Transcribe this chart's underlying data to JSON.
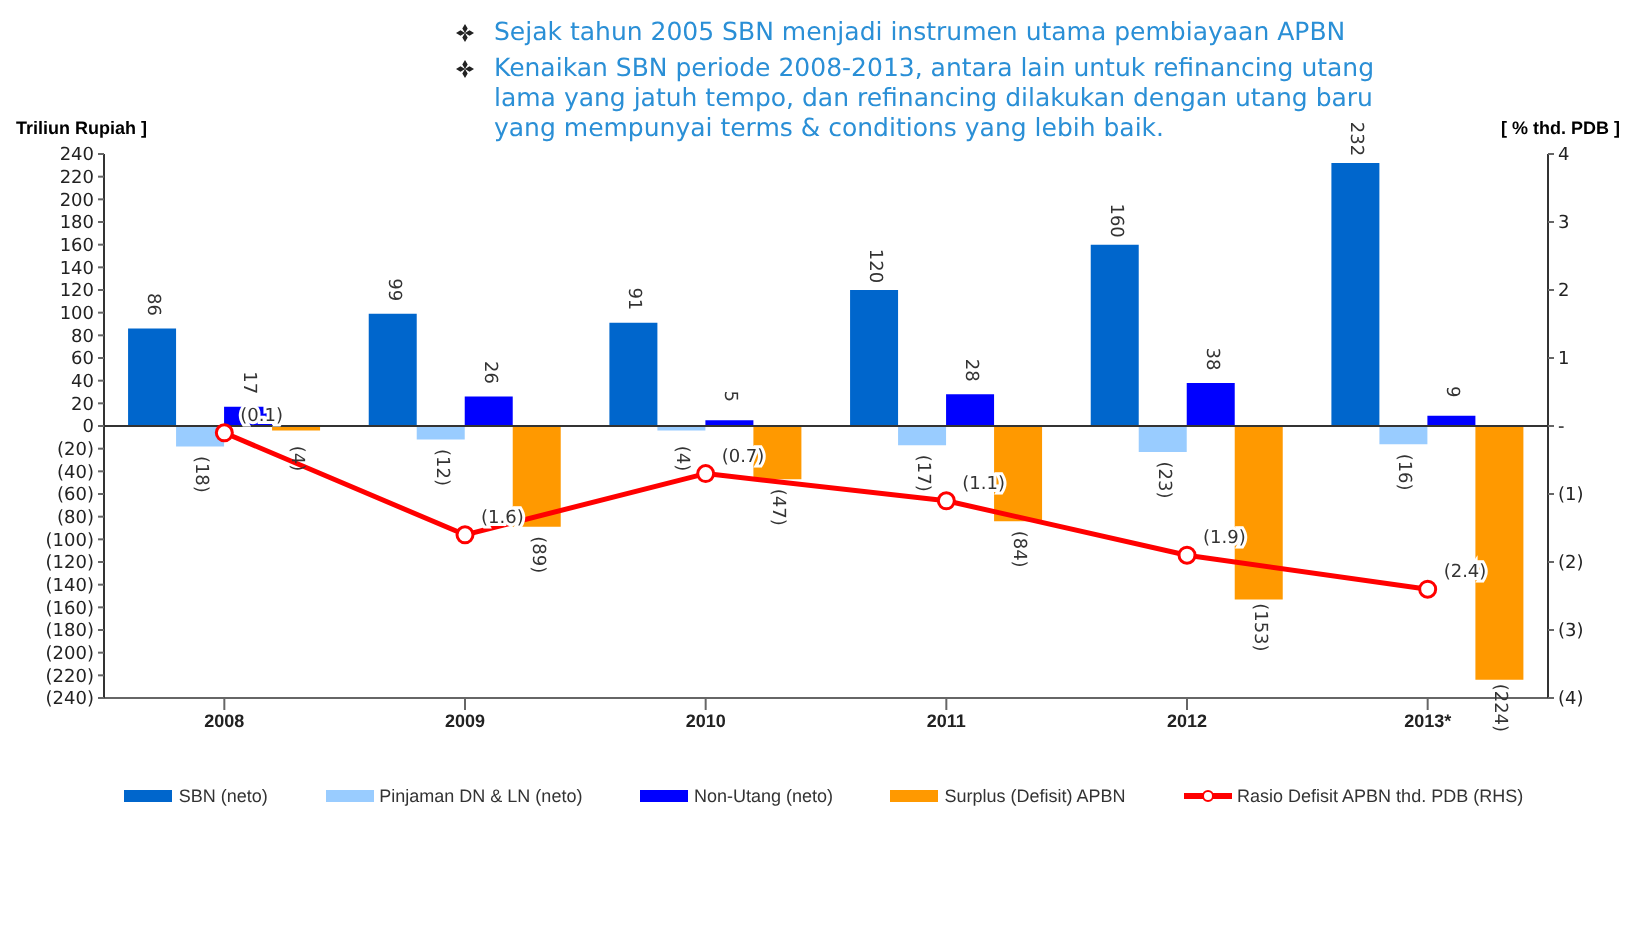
{
  "chart_data": {
    "type": "bar",
    "title": "Sejak tahun 2005 SBN menjadi instrumen utama pembiayaan APBN",
    "subtitle": "Kenaikan SBN periode 2008-2013, antara lain untuk refinancing utang lama yang jatuh tempo, dan refinancing dilakukan dengan utang baru yang mempunyai terms & conditions yang lebih baik.",
    "ylabel": "Triliun Rupiah ]",
    "y2label": "[ % thd. PDB ]",
    "categories": [
      "2008",
      "2009",
      "2010",
      "2011",
      "2012",
      "2013*"
    ],
    "series": [
      {
        "name": "SBN (neto)",
        "color": "#0066cc",
        "values": [
          86,
          99,
          91,
          120,
          160,
          232
        ],
        "value_labels": [
          "86",
          "99",
          "91",
          "120",
          "160",
          "232"
        ]
      },
      {
        "name": "Pinjaman DN & LN (neto)",
        "color": "#99ccff",
        "values": [
          -18,
          -12,
          -4,
          -17,
          -23,
          -16
        ],
        "value_labels": [
          "(18)",
          "(12)",
          "(4)",
          "(17)",
          "(23)",
          "(16)"
        ]
      },
      {
        "name": "Non-Utang (neto)",
        "color": "#0000ff",
        "values": [
          17,
          26,
          5,
          28,
          38,
          9
        ],
        "value_labels": [
          "17",
          "26",
          "5",
          "28",
          "38",
          "9"
        ]
      },
      {
        "name": "Surplus (Defisit) APBN",
        "color": "#ff9900",
        "values": [
          -4,
          -89,
          -47,
          -84,
          -153,
          -224
        ],
        "value_labels": [
          "(4)",
          "(89)",
          "(47)",
          "(84)",
          "(153)",
          "(224)"
        ]
      },
      {
        "name": "Rasio Defisit APBN thd. PDB (RHS)",
        "type": "line",
        "axis": "y2",
        "color": "#ff0000",
        "marker": "circle",
        "values": [
          -0.1,
          -1.6,
          -0.7,
          -1.1,
          -1.9,
          -2.4
        ],
        "value_labels": [
          "(0.1)",
          "(1.6)",
          "(0.7)",
          "(1.1)",
          "(1.9)",
          "(2.4)"
        ]
      }
    ],
    "ylim": [
      -240,
      240
    ],
    "yticks": [
      240,
      220,
      200,
      180,
      160,
      140,
      120,
      100,
      80,
      60,
      40,
      20,
      0,
      {
        "value": -20,
        "label": "(20)"
      },
      {
        "value": -40,
        "label": "(40)"
      },
      {
        "value": -60,
        "label": "(60)"
      },
      {
        "value": -80,
        "label": "(80)"
      },
      {
        "value": -100,
        "label": "(100)"
      },
      {
        "value": -120,
        "label": "(120)"
      },
      {
        "value": -140,
        "label": "(140)"
      },
      {
        "value": -160,
        "label": "(160)"
      },
      {
        "value": -180,
        "label": "(180)"
      },
      {
        "value": -200,
        "label": "(200)"
      },
      {
        "value": -220,
        "label": "(220)"
      },
      {
        "value": -240,
        "label": "(240)"
      }
    ],
    "y2lim": [
      -4,
      4
    ],
    "y2ticks": [
      4,
      3,
      2,
      1,
      {
        "value": 0,
        "label": "-"
      },
      {
        "value": -1,
        "label": "(1)"
      },
      {
        "value": -2,
        "label": "(2)"
      },
      {
        "value": -3,
        "label": "(3)"
      },
      {
        "value": -4,
        "label": "(4)"
      }
    ],
    "ref_lines": [
      {
        "axis": "y",
        "value": 0,
        "color": "#333333"
      }
    ],
    "legend": "bottom"
  }
}
